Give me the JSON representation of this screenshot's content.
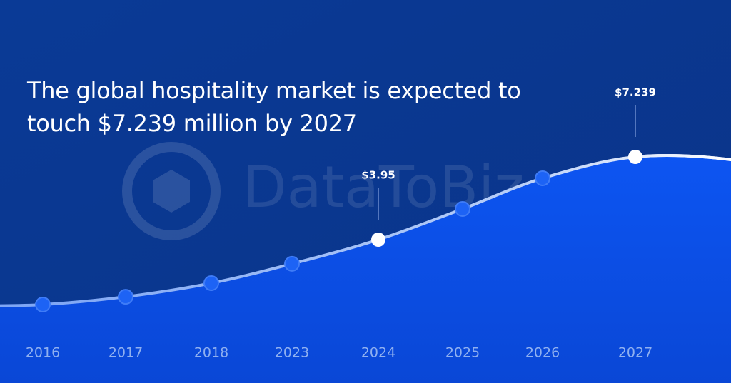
{
  "chart_data": {
    "type": "area",
    "title": "The global hospitality market is expected to touch $7.239 million by 2027",
    "watermark": "DataToBiz",
    "categories": [
      "2016",
      "2017",
      "2018",
      "2023",
      "2024",
      "2025",
      "2026",
      "2027"
    ],
    "values": [
      1.37,
      1.68,
      2.22,
      2.99,
      3.95,
      5.17,
      6.39,
      7.239
    ],
    "value_labels": [
      null,
      null,
      null,
      null,
      "$3.95",
      null,
      null,
      "$7.239"
    ],
    "color": "#1d63f5"
  }
}
